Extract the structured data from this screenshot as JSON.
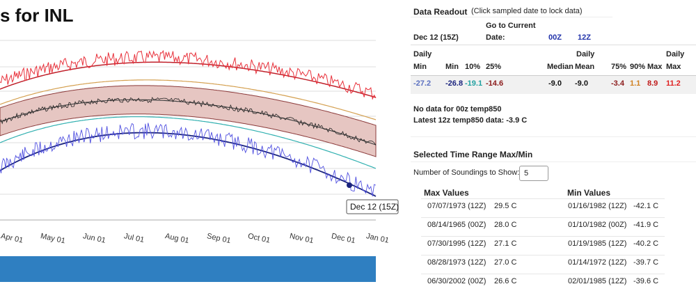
{
  "title": "s for INL",
  "chart": {
    "months": [
      "Apr 01",
      "May 01",
      "Jun 01",
      "Jul 01",
      "Aug 01",
      "Sep 01",
      "Oct 01",
      "Nov 01",
      "Dec 01",
      "Jan 01"
    ],
    "tooltip": "Dec 12 (15Z)"
  },
  "readout": {
    "title": "Data Readout",
    "hint": "(Click sampled date to lock data)",
    "go_current": "Go to Current",
    "date_label": "Date:",
    "current_date": "Dec 12 (15Z)",
    "link_00z": "00Z",
    "link_12z": "12Z",
    "header_top": [
      "Daily",
      "Daily",
      "Daily"
    ],
    "header": [
      "Min",
      "Min",
      "10%",
      "25%",
      "Median",
      "Mean",
      "75%",
      "90%",
      "Max",
      "Max"
    ],
    "values": [
      "-27.2",
      "-26.8",
      "-19.1",
      "-14.6",
      "-9.0",
      "-9.0",
      "-3.4",
      "1.1",
      "8.9",
      "11.2"
    ],
    "note_00z": "No data for 00z temp850",
    "note_12z": "Latest 12z temp850 data: -3.9 C"
  },
  "range": {
    "title": "Selected Time Range Max/Min",
    "soundings_label": "Number of Soundings to Show:",
    "soundings": "5",
    "max_title": "Max Values",
    "min_title": "Min Values",
    "max_rows": [
      [
        "07/07/1973 (12Z)",
        "29.5 C"
      ],
      [
        "08/14/1965 (00Z)",
        "28.0 C"
      ],
      [
        "07/30/1995 (12Z)",
        "27.1 C"
      ],
      [
        "08/28/1973 (12Z)",
        "27.0 C"
      ],
      [
        "06/30/2002 (00Z)",
        "26.6 C"
      ]
    ],
    "min_rows": [
      [
        "01/16/1982 (12Z)",
        "-42.1 C"
      ],
      [
        "01/10/1982 (00Z)",
        "-41.9 C"
      ],
      [
        "01/19/1985 (12Z)",
        "-40.2 C"
      ],
      [
        "01/14/1972 (12Z)",
        "-39.7 C"
      ],
      [
        "02/01/1985 (12Z)",
        "-39.6 C"
      ]
    ]
  }
}
